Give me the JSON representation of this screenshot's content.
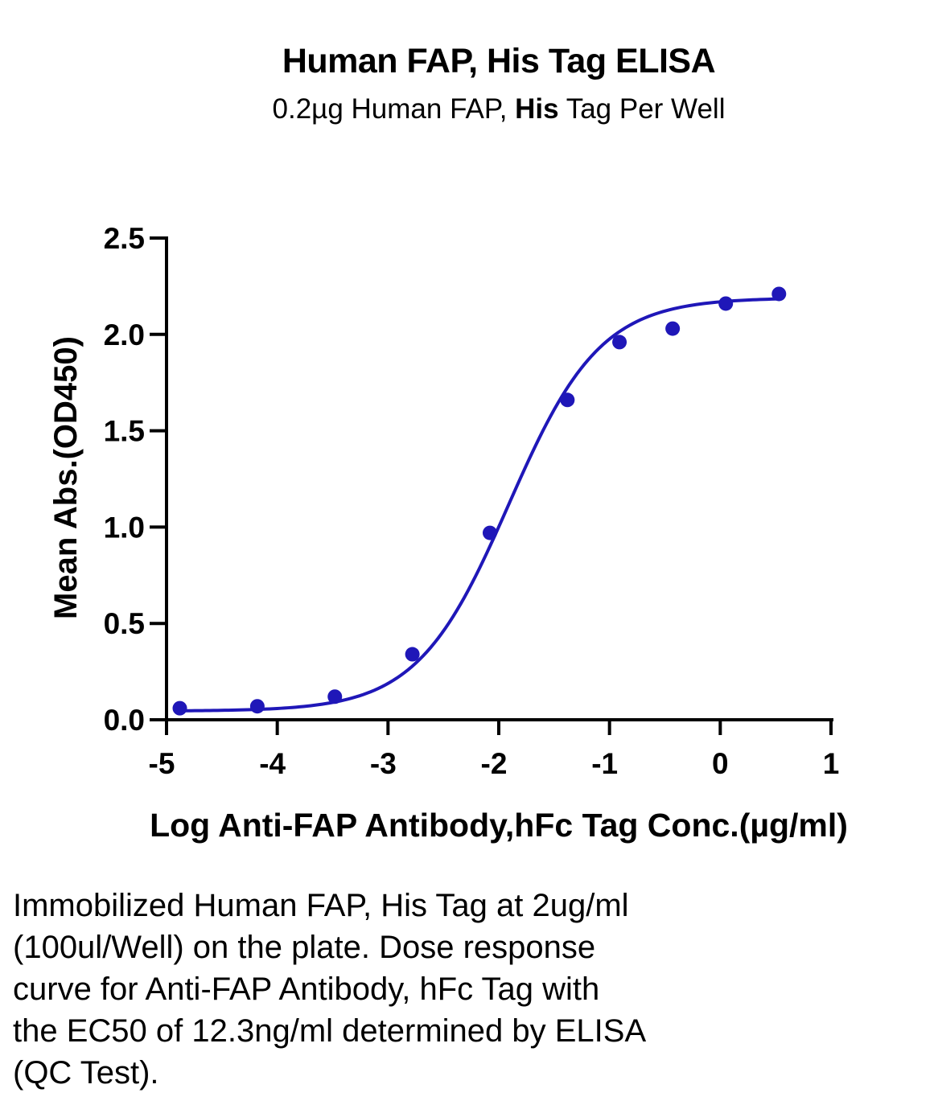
{
  "chart_data": {
    "type": "scatter",
    "title": "Human FAP, His Tag ELISA",
    "subtitle": {
      "before": "0.2µg Human FAP, ",
      "bold": "His",
      "after": " Tag Per Well"
    },
    "xlabel": "Log Anti-FAP Antibody,hFc Tag Conc.(µg/ml)",
    "ylabel": "Mean Abs.(OD450)",
    "xlim": [
      -5,
      1
    ],
    "ylim": [
      0,
      2.5
    ],
    "x_ticks": [
      "-5",
      "-4",
      "-3",
      "-2",
      "-1",
      "0",
      "1"
    ],
    "y_ticks": [
      "0.0",
      "0.5",
      "1.0",
      "1.5",
      "2.0",
      "2.5"
    ],
    "color": "#1f17b8",
    "points": {
      "x": [
        -4.88,
        -4.18,
        -3.48,
        -2.78,
        -2.08,
        -1.38,
        -0.91,
        -0.43,
        0.05,
        0.53
      ],
      "y": [
        0.06,
        0.07,
        0.12,
        0.34,
        0.97,
        1.66,
        1.96,
        2.03,
        2.16,
        2.21
      ]
    },
    "fit": {
      "bottom": 0.045,
      "top": 2.19,
      "log_ec50": -1.91,
      "hill_slope": 1.05
    },
    "grid": false,
    "legend": "none"
  },
  "caption": "Immobilized Human FAP, His Tag at 2ug/ml\n(100ul/Well) on the plate. Dose response\ncurve for Anti-FAP Antibody, hFc Tag with\nthe EC50 of 12.3ng/ml determined by ELISA\n(QC Test)."
}
